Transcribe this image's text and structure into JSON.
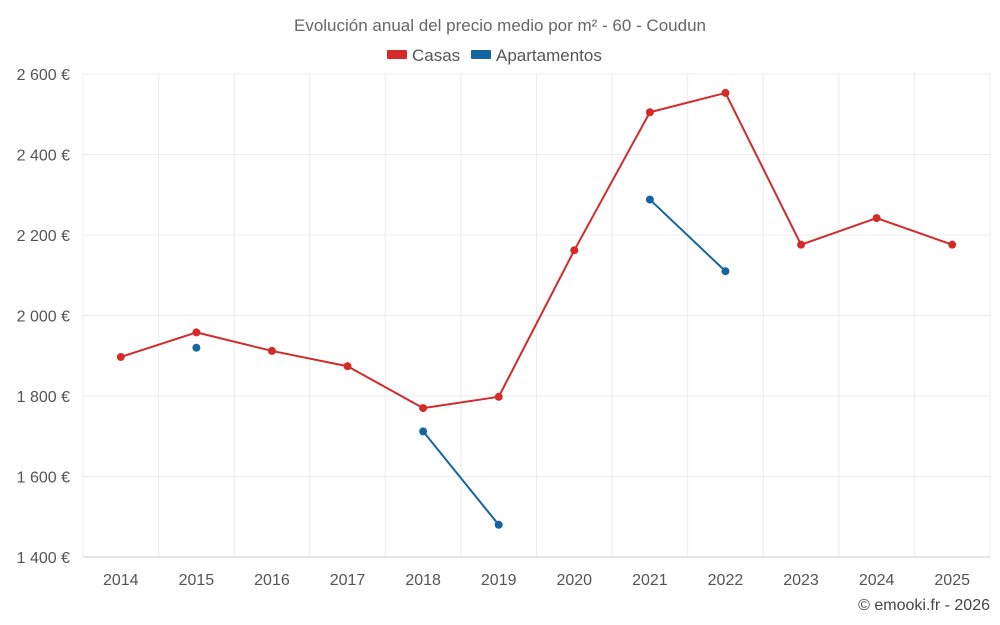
{
  "chart_data": {
    "type": "line",
    "title": "Evolución anual del precio medio por m² - 60 - Coudun",
    "categories": [
      "2014",
      "2015",
      "2016",
      "2017",
      "2018",
      "2019",
      "2020",
      "2021",
      "2022",
      "2023",
      "2024",
      "2025"
    ],
    "series": [
      {
        "name": "Casas",
        "color": "#d42a2a",
        "values": [
          1897,
          1958,
          1912,
          1874,
          1770,
          1798,
          2162,
          2505,
          2553,
          2176,
          2242,
          2176
        ]
      },
      {
        "name": "Apartamentos",
        "color": "#1466a0",
        "values": [
          null,
          1920,
          null,
          null,
          1712,
          1480,
          null,
          2288,
          2110,
          null,
          null,
          null
        ]
      }
    ],
    "ylim": [
      1400,
      2600
    ],
    "yticks": [
      1400,
      1600,
      1800,
      2000,
      2200,
      2400,
      2600
    ],
    "ytick_labels": [
      "1 400 €",
      "1 600 €",
      "1 800 €",
      "2 000 €",
      "2 200 €",
      "2 400 €",
      "2 600 €"
    ],
    "grid": true,
    "legend_position": "top-center",
    "xlabel": "",
    "ylabel": ""
  },
  "credit": "© emooki.fr - 2026"
}
